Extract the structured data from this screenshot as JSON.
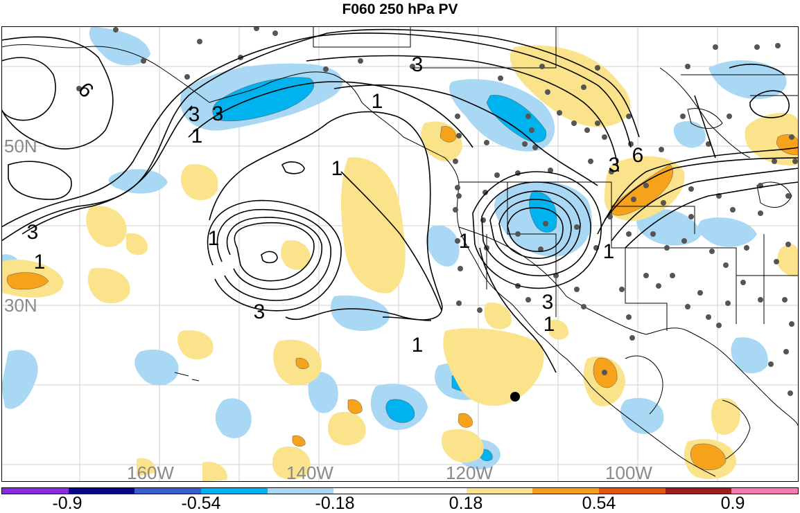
{
  "title": "F060 250 hPa PV",
  "lat_labels": [
    "50N",
    "30N"
  ],
  "lon_labels": [
    "160W",
    "140W",
    "120W",
    "100W"
  ],
  "contour_labels": [
    "6",
    "3",
    "3",
    "1",
    "1",
    "1",
    "1",
    "3",
    "1",
    "3",
    "3",
    "1",
    "1",
    "1",
    "3",
    "6",
    "3",
    "1"
  ],
  "colorbar": {
    "colors": [
      "#8a2be2",
      "#08088a",
      "#3a5fcd",
      "#00b2ee",
      "#a9d8f5",
      "#ffffff",
      "#ffffff",
      "#fae38a",
      "#f7a21b",
      "#e8530e",
      "#a01b1b",
      "#f77ab0"
    ],
    "tick_labels": [
      "-0.9",
      "-0.54",
      "-0.18",
      "0.18",
      "0.54",
      "0.9"
    ]
  },
  "shading_colors": {
    "light_blue": "#a9d8f5",
    "mid_blue": "#00b2ee",
    "light_yellow": "#fae38a",
    "orange": "#f7a21b"
  }
}
